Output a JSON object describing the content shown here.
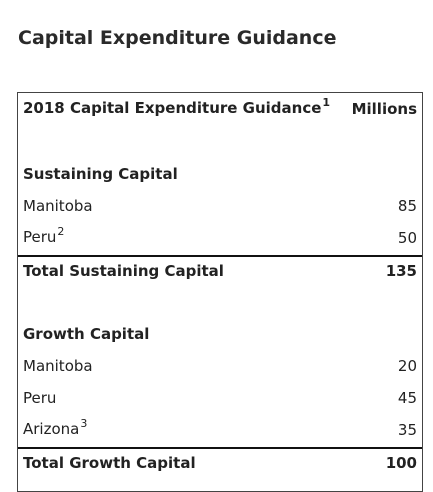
{
  "title": "Capital Expenditure Guidance",
  "table": {
    "header": {
      "label": "2018 Capital Expenditure Guidance",
      "note": "1",
      "unit": "Millions"
    },
    "sections": [
      {
        "heading": "Sustaining Capital",
        "rows": [
          {
            "label": "Manitoba",
            "value": 85
          },
          {
            "label": "Peru",
            "note": "2",
            "value": 50
          }
        ],
        "total": {
          "label": "Total Sustaining Capital",
          "value": 135
        }
      },
      {
        "heading": "Growth Capital",
        "rows": [
          {
            "label": "Manitoba",
            "value": 20
          },
          {
            "label": "Peru",
            "value": 45
          },
          {
            "label": "Arizona",
            "note": "3",
            "value": 35
          }
        ],
        "total": {
          "label": "Total Growth Capital",
          "value": 100
        }
      }
    ]
  }
}
